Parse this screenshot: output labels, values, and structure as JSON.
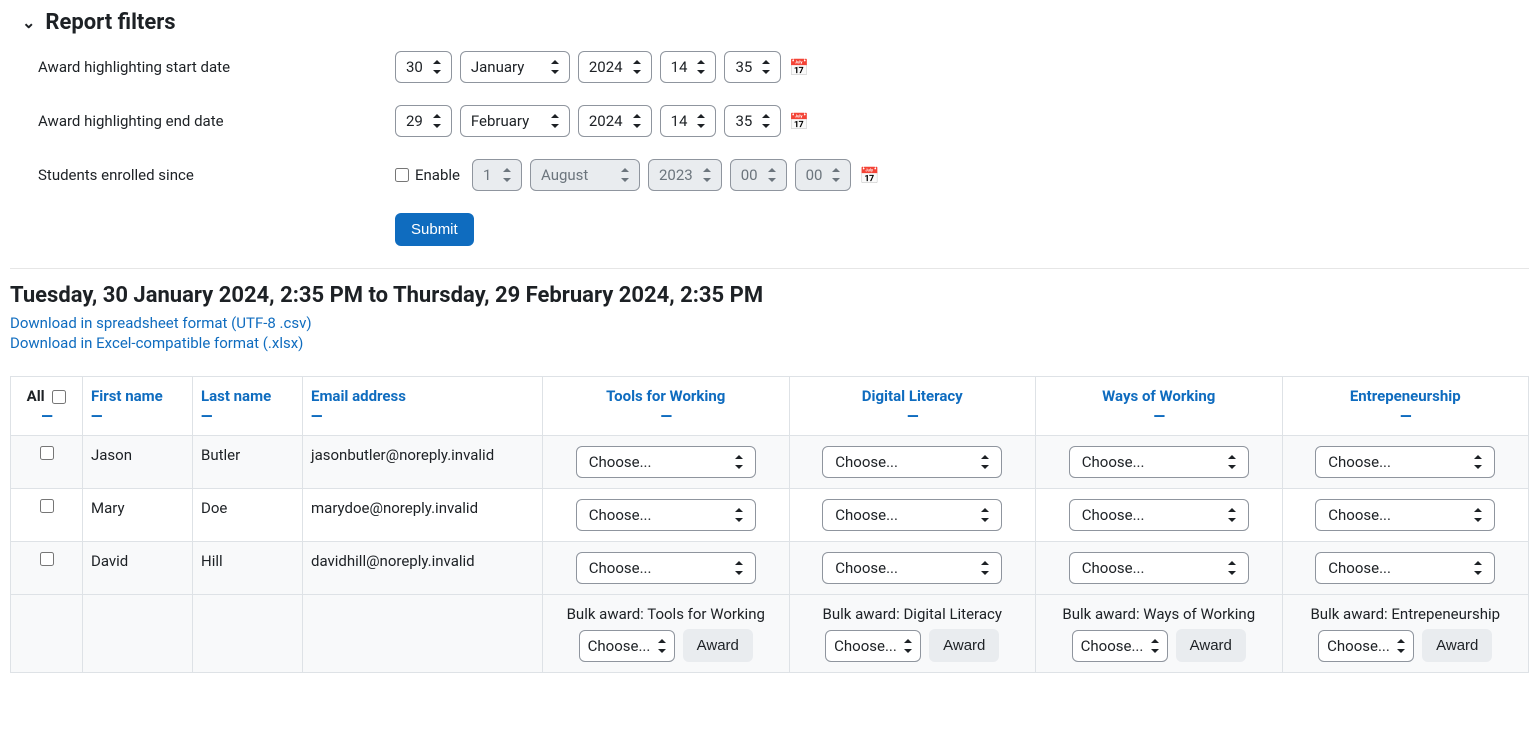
{
  "filters": {
    "title": "Report filters",
    "start": {
      "label": "Award highlighting start date",
      "day": "30",
      "month": "January",
      "year": "2024",
      "hour": "14",
      "minute": "35"
    },
    "end": {
      "label": "Award highlighting end date",
      "day": "29",
      "month": "February",
      "year": "2024",
      "hour": "14",
      "minute": "35"
    },
    "enrolled": {
      "label": "Students enrolled since",
      "enable_label": "Enable",
      "day": "1",
      "month": "August",
      "year": "2023",
      "hour": "00",
      "minute": "00"
    },
    "submit_label": "Submit"
  },
  "range_heading": "Tuesday, 30 January 2024, 2:35 PM to Thursday, 29 February 2024, 2:35 PM",
  "downloads": {
    "csv": "Download in spreadsheet format (UTF-8 .csv)",
    "xlsx": "Download in Excel-compatible format (.xlsx)"
  },
  "table": {
    "headers": {
      "all": "All",
      "first_name": "First name",
      "last_name": "Last name",
      "email": "Email address",
      "competencies": [
        "Tools for Working",
        "Digital Literacy",
        "Ways of Working",
        "Entrepeneurship"
      ]
    },
    "choose_label": "Choose...",
    "rows": [
      {
        "first": "Jason",
        "last": "Butler",
        "email": "jasonbutler@noreply.invalid"
      },
      {
        "first": "Mary",
        "last": "Doe",
        "email": "marydoe@noreply.invalid"
      },
      {
        "first": "David",
        "last": "Hill",
        "email": "davidhill@noreply.invalid"
      }
    ],
    "bulk": {
      "prefix": "Bulk award:",
      "award_label": "Award"
    }
  },
  "colors": {
    "link": "#0f6cbf",
    "border": "#dee2e6",
    "muted_bg": "#e9ecef",
    "stripe": "#f8f9fa"
  }
}
